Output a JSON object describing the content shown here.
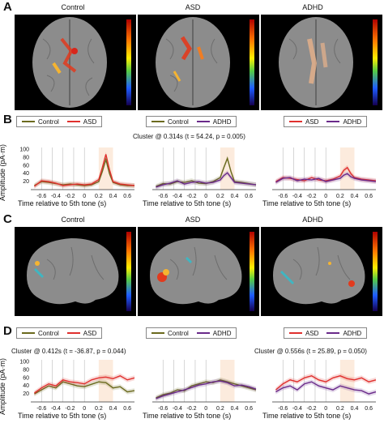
{
  "panels": {
    "A": "A",
    "B": "B",
    "C": "C",
    "D": "D"
  },
  "groups": [
    "Control",
    "ASD",
    "ADHD"
  ],
  "colors": {
    "control": "#6b6a1e",
    "asd": "#e0302e",
    "adhd": "#6a2a8a"
  },
  "legends": {
    "B": [
      [
        {
          "label": "Control",
          "color": "#6b6a1e"
        },
        {
          "label": "ASD",
          "color": "#e0302e"
        }
      ],
      [
        {
          "label": "Control",
          "color": "#6b6a1e"
        },
        {
          "label": "ADHD",
          "color": "#6a2a8a"
        }
      ],
      [
        {
          "label": "ASD",
          "color": "#e0302e"
        },
        {
          "label": "ADHD",
          "color": "#6a2a8a"
        }
      ]
    ],
    "D": [
      [
        {
          "label": "Control",
          "color": "#6b6a1e"
        },
        {
          "label": "ASD",
          "color": "#e0302e"
        }
      ],
      [
        {
          "label": "Control",
          "color": "#6b6a1e"
        },
        {
          "label": "ADHD",
          "color": "#6a2a8a"
        }
      ],
      [
        {
          "label": "ASD",
          "color": "#e0302e"
        },
        {
          "label": "ADHD",
          "color": "#6a2a8a"
        }
      ]
    ]
  },
  "clusters": {
    "B_mid": "Cluster @ 0.314s (t = 54.24, p = 0.005)",
    "D_left": "Cluster @ 0.412s (t = -36.87, p = 0.044)",
    "D_right": "Cluster @ 0.556s (t = 25.89, p = 0.050)"
  },
  "axes": {
    "ylabel": "Amplitude (pA·m)",
    "xlabel": "Time relative to 5th tone (s)",
    "xticks": [
      "-0.6",
      "-0.4",
      "-0.2",
      "0",
      "0.2",
      "0.4",
      "0.6"
    ],
    "B_yticks": [
      "100",
      "80",
      "60",
      "40",
      "20"
    ],
    "D_yticks": [
      "100",
      "80",
      "60",
      "40",
      "20"
    ]
  },
  "chart_data": [
    {
      "type": "line",
      "panel": "B",
      "title": "",
      "xlabel": "Time relative to 5th tone (s)",
      "ylabel": "Amplitude (pA·m)",
      "xlim": [
        -0.75,
        0.7
      ],
      "ylim": [
        0,
        105
      ],
      "x": [
        -0.7,
        -0.6,
        -0.5,
        -0.4,
        -0.3,
        -0.2,
        -0.1,
        0,
        0.1,
        0.2,
        0.25,
        0.3,
        0.35,
        0.4,
        0.5,
        0.6,
        0.7
      ],
      "series": [
        {
          "name": "Control",
          "values": [
            10,
            20,
            18,
            15,
            12,
            14,
            12,
            10,
            12,
            20,
            45,
            75,
            40,
            18,
            12,
            10,
            10
          ]
        },
        {
          "name": "ASD",
          "values": [
            8,
            22,
            20,
            16,
            10,
            12,
            14,
            12,
            14,
            25,
            55,
            88,
            50,
            20,
            14,
            12,
            10
          ]
        }
      ]
    },
    {
      "type": "line",
      "panel": "B",
      "title": "",
      "xlim": [
        -0.75,
        0.7
      ],
      "ylim": [
        0,
        105
      ],
      "x": [
        -0.7,
        -0.6,
        -0.5,
        -0.4,
        -0.3,
        -0.2,
        -0.1,
        0,
        0.1,
        0.2,
        0.25,
        0.3,
        0.35,
        0.4,
        0.5,
        0.6,
        0.7
      ],
      "series": [
        {
          "name": "Control",
          "values": [
            8,
            15,
            14,
            20,
            18,
            22,
            16,
            15,
            20,
            30,
            55,
            78,
            45,
            20,
            18,
            15,
            12
          ]
        },
        {
          "name": "ADHD",
          "values": [
            6,
            12,
            16,
            22,
            14,
            18,
            20,
            16,
            18,
            24,
            35,
            42,
            30,
            18,
            16,
            14,
            12
          ]
        }
      ]
    },
    {
      "type": "line",
      "panel": "B",
      "title": "",
      "xlim": [
        -0.75,
        0.7
      ],
      "ylim": [
        0,
        105
      ],
      "x": [
        -0.7,
        -0.6,
        -0.5,
        -0.4,
        -0.3,
        -0.2,
        -0.1,
        0,
        0.1,
        0.2,
        0.25,
        0.3,
        0.35,
        0.4,
        0.5,
        0.6,
        0.7
      ],
      "series": [
        {
          "name": "ASD",
          "values": [
            20,
            30,
            28,
            25,
            22,
            30,
            24,
            22,
            26,
            34,
            48,
            55,
            40,
            30,
            26,
            24,
            22
          ]
        },
        {
          "name": "ADHD",
          "values": [
            18,
            28,
            30,
            22,
            26,
            24,
            28,
            20,
            24,
            28,
            36,
            40,
            32,
            28,
            24,
            22,
            20
          ]
        }
      ]
    },
    {
      "type": "line",
      "panel": "D",
      "title": "",
      "xlabel": "Time relative to 5th tone (s)",
      "ylabel": "Amplitude (pA·m)",
      "xlim": [
        -0.75,
        0.7
      ],
      "ylim": [
        0,
        105
      ],
      "x": [
        -0.7,
        -0.6,
        -0.5,
        -0.4,
        -0.3,
        -0.2,
        -0.1,
        0,
        0.1,
        0.2,
        0.3,
        0.4,
        0.5,
        0.6,
        0.7
      ],
      "series": [
        {
          "name": "Control",
          "values": [
            20,
            30,
            40,
            35,
            50,
            45,
            40,
            38,
            44,
            50,
            48,
            35,
            38,
            25,
            28
          ]
        },
        {
          "name": "ASD",
          "values": [
            22,
            35,
            45,
            40,
            55,
            50,
            48,
            45,
            55,
            60,
            62,
            58,
            65,
            55,
            60
          ]
        }
      ]
    },
    {
      "type": "line",
      "panel": "D",
      "title": "",
      "xlim": [
        -0.75,
        0.7
      ],
      "ylim": [
        0,
        105
      ],
      "x": [
        -0.7,
        -0.6,
        -0.5,
        -0.4,
        -0.3,
        -0.2,
        -0.1,
        0,
        0.1,
        0.2,
        0.3,
        0.4,
        0.5,
        0.6,
        0.7
      ],
      "series": [
        {
          "name": "Control",
          "values": [
            10,
            18,
            22,
            30,
            28,
            40,
            45,
            50,
            48,
            55,
            50,
            45,
            40,
            35,
            30
          ]
        },
        {
          "name": "ADHD",
          "values": [
            8,
            15,
            20,
            25,
            30,
            36,
            42,
            45,
            50,
            52,
            48,
            40,
            42,
            38,
            32
          ]
        }
      ]
    },
    {
      "type": "line",
      "panel": "D",
      "title": "",
      "xlim": [
        -0.75,
        0.7
      ],
      "ylim": [
        0,
        105
      ],
      "x": [
        -0.7,
        -0.6,
        -0.5,
        -0.4,
        -0.3,
        -0.2,
        -0.1,
        0,
        0.1,
        0.2,
        0.3,
        0.4,
        0.5,
        0.6,
        0.7
      ],
      "series": [
        {
          "name": "ASD",
          "values": [
            30,
            45,
            55,
            50,
            60,
            65,
            55,
            50,
            60,
            65,
            58,
            55,
            60,
            50,
            55
          ]
        },
        {
          "name": "ADHD",
          "values": [
            25,
            35,
            40,
            30,
            45,
            50,
            40,
            35,
            30,
            40,
            35,
            30,
            28,
            20,
            25
          ]
        }
      ]
    }
  ]
}
